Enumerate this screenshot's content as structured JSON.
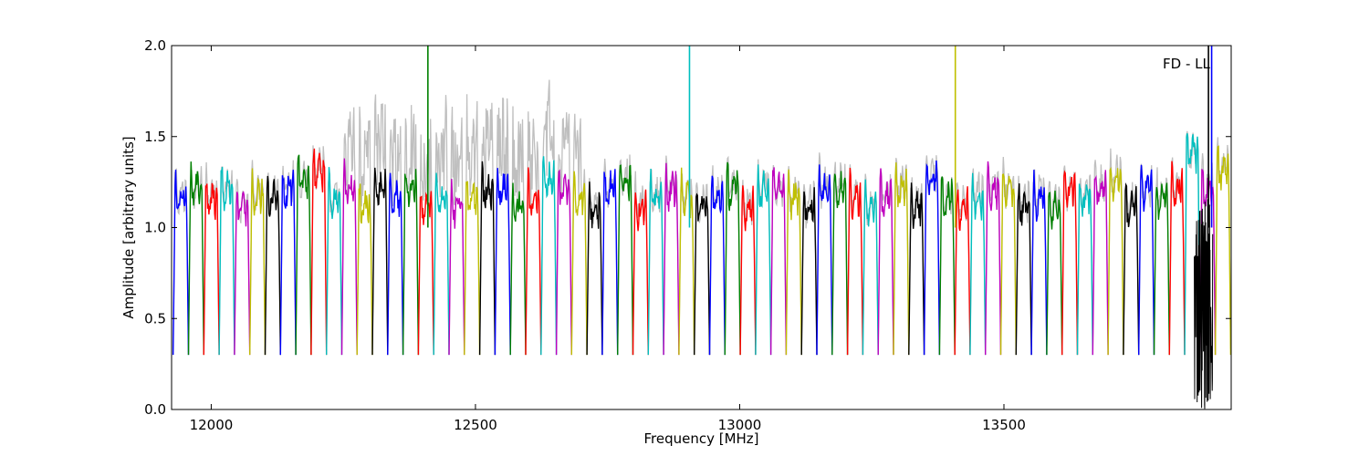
{
  "chart_data": {
    "type": "line",
    "title": "",
    "xlabel": "Frequency [MHz]",
    "ylabel": "Amplitude [arbitrary units]",
    "annotation": "FD - LL",
    "xlim": [
      11925,
      13930
    ],
    "ylim": [
      0.0,
      2.0
    ],
    "xticks": [
      12000,
      12500,
      13000,
      13500
    ],
    "xtick_labels": [
      "12000",
      "12500",
      "13000",
      "13500"
    ],
    "yticks": [
      0.0,
      0.5,
      1.0,
      1.5,
      2.0
    ],
    "ytick_labels": [
      "0.0",
      "0.5",
      "1.0",
      "1.5",
      "2.0"
    ],
    "grid": false,
    "background_trace_color": "#bfbfbf",
    "colors": [
      "#0000ff",
      "#008000",
      "#ff0000",
      "#00bfbf",
      "#bf00bf",
      "#bfbf00",
      "#000000"
    ],
    "channel_width_mhz": 29,
    "channel_start_mhz": 11928,
    "channel_plateau_levels": [
      1.15,
      1.2,
      1.15,
      1.2,
      1.1,
      1.15,
      1.15,
      1.2,
      1.25,
      1.3,
      1.15,
      1.2,
      1.1,
      1.2,
      1.15,
      1.2,
      1.1,
      1.15,
      1.1,
      1.15,
      1.2,
      1.2,
      1.1,
      1.15,
      1.25,
      1.2,
      1.15,
      1.1,
      1.2,
      1.25,
      1.1,
      1.15,
      1.2,
      1.15,
      1.1,
      1.15,
      1.2,
      1.1,
      1.2,
      1.2,
      1.15,
      1.1,
      1.2,
      1.2,
      1.15,
      1.1,
      1.15,
      1.2,
      1.1,
      1.25,
      1.15,
      1.1,
      1.15,
      1.2,
      1.2,
      1.1,
      1.15,
      1.1,
      1.2,
      1.15,
      1.2,
      1.25,
      1.1,
      1.2,
      1.15,
      1.2,
      1.4,
      1.2,
      1.3
    ],
    "channel_edge_min": 0.3,
    "spikes": [
      {
        "x": 12410,
        "y": 2.0,
        "color": "#008000"
      },
      {
        "x": 12905,
        "y": 2.0,
        "color": "#00bfbf"
      },
      {
        "x": 13408,
        "y": 2.0,
        "color": "#bfbf00"
      },
      {
        "x": 13887,
        "y": 2.0,
        "color": "#000000"
      },
      {
        "x": 13893,
        "y": 2.0,
        "color": "#0000ff"
      }
    ],
    "noise_region": {
      "x_start": 13860,
      "x_end": 13895,
      "y_min": 0.0,
      "y_max": 1.2,
      "color": "#000000"
    }
  }
}
